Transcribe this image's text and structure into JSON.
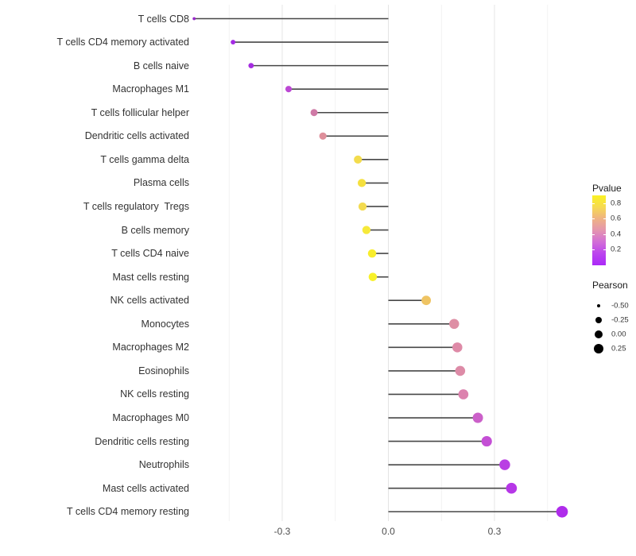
{
  "chart_data": {
    "type": "scatter",
    "variant": "lollipop",
    "orientation": "horizontal",
    "title": "",
    "xlabel": "",
    "ylabel": "",
    "grid": true,
    "legend_position": "right",
    "categories": [
      "T cells CD8",
      "T cells CD4 memory activated",
      "B cells naive",
      "Macrophages M1",
      "T cells follicular helper",
      "Dendritic cells activated",
      "T cells gamma delta",
      "Plasma cells",
      "T cells regulatory  Tregs",
      "B cells memory",
      "T cells CD4 naive",
      "Mast cells resting",
      "NK cells activated",
      "Monocytes",
      "Macrophages M2",
      "Eosinophils",
      "NK cells resting",
      "Macrophages M0",
      "Dendritic cells resting",
      "Neutrophils",
      "Mast cells activated",
      "T cells CD4 memory resting"
    ],
    "series": [
      {
        "name": "Pearson",
        "values": [
          -0.549,
          -0.439,
          -0.388,
          -0.282,
          -0.21,
          -0.185,
          -0.086,
          -0.075,
          -0.073,
          -0.062,
          -0.046,
          -0.044,
          0.107,
          0.186,
          0.195,
          0.203,
          0.212,
          0.253,
          0.278,
          0.329,
          0.348,
          0.491
        ]
      }
    ],
    "pvalues_estimated_from_color": [
      0.03,
      0.06,
      0.07,
      0.15,
      0.38,
      0.47,
      0.72,
      0.75,
      0.72,
      0.78,
      0.82,
      0.85,
      0.6,
      0.45,
      0.44,
      0.44,
      0.42,
      0.24,
      0.2,
      0.13,
      0.12,
      0.05
    ],
    "point_colors": [
      "#9727C8",
      "#A42BE4",
      "#A52CE0",
      "#BC48D4",
      "#CF7AA6",
      "#DE8F9B",
      "#F3DC4D",
      "#F5E03E",
      "#F3DB50",
      "#F6E93A",
      "#F8ED2C",
      "#F8F12A",
      "#EFC463",
      "#DE8FA5",
      "#DE8AA7",
      "#DD8BA7",
      "#DC82AE",
      "#CB60C9",
      "#C44FD5",
      "#B93FE3",
      "#B637E7",
      "#AF2CEB"
    ],
    "x_axis": {
      "tick_labels": [
        "-0.3",
        "0.0",
        "0.3"
      ],
      "tick_values": [
        -0.3,
        0.0,
        0.3
      ],
      "minor_gridlines": [
        -0.45,
        -0.15,
        0.15,
        0.45
      ],
      "range": [
        -0.55,
        0.5
      ]
    }
  },
  "legend": {
    "pvalue": {
      "title": "Pvalue",
      "tick_labels": [
        "0.8",
        "0.6",
        "0.4",
        "0.2"
      ],
      "tick_values": [
        0.8,
        0.6,
        0.4,
        0.2
      ],
      "bar_range": [
        0.9,
        0.0
      ],
      "gradient_top_to_bottom": [
        "#FAF222",
        "#F6DA52",
        "#EFB284",
        "#E495AF",
        "#D26ED7",
        "#BB44EE",
        "#AB29F8"
      ]
    },
    "pearson": {
      "title": "Pearson",
      "entry_labels": [
        "-0.50",
        "-0.25",
        "0.00",
        "0.25"
      ],
      "entry_values": [
        -0.5,
        -0.25,
        0.0,
        0.25
      ],
      "dot_color": "#000000"
    }
  },
  "colors": {
    "stem": "#474747",
    "grid_major": "#E4E4E4",
    "grid_minor": "#F2F2F2",
    "axis_text": "#4D4D4D",
    "category_text": "#333333",
    "background": "#FFFFFF"
  }
}
